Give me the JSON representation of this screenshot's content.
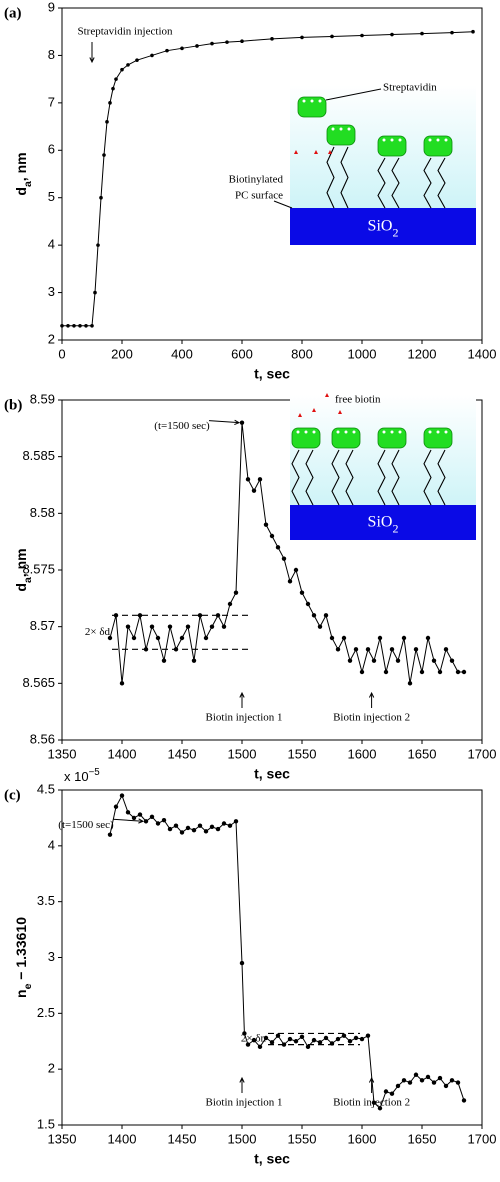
{
  "chart_data": [
    {
      "type": "line",
      "panel_label": "(a)",
      "ylabel_main": "d",
      "ylabel_sub": "a",
      "ylabel_rest": ", nm",
      "xlabel": "t, sec",
      "xlim": [
        0,
        1400
      ],
      "xticks": [
        0,
        200,
        400,
        600,
        800,
        1000,
        1200,
        1400
      ],
      "ylim": [
        2,
        9
      ],
      "yticks": [
        2,
        3,
        4,
        5,
        6,
        7,
        8,
        9
      ],
      "color": "#000000",
      "x": [
        0,
        20,
        40,
        60,
        80,
        100,
        110,
        120,
        130,
        140,
        150,
        160,
        170,
        180,
        200,
        220,
        250,
        300,
        350,
        400,
        450,
        500,
        550,
        600,
        700,
        800,
        900,
        1000,
        1100,
        1200,
        1300,
        1370
      ],
      "values": [
        2.3,
        2.3,
        2.3,
        2.3,
        2.3,
        2.3,
        3.0,
        4.0,
        5.0,
        5.9,
        6.6,
        7.0,
        7.3,
        7.5,
        7.7,
        7.8,
        7.9,
        8.0,
        8.1,
        8.15,
        8.2,
        8.25,
        8.28,
        8.3,
        8.35,
        8.38,
        8.4,
        8.42,
        8.44,
        8.46,
        8.48,
        8.5
      ],
      "injection_label": "Streptavidin injection",
      "inset": {
        "protein_label": "Streptavidin",
        "surface_label_1": "Biotinylated",
        "surface_label_2": "PC surface",
        "substrate": "SiO",
        "substrate_sub": "2"
      }
    },
    {
      "type": "line",
      "panel_label": "(b)",
      "ylabel_main": "d",
      "ylabel_sub": "a",
      "ylabel_rest": ", nm",
      "xlabel": "t, sec",
      "xlim": [
        1350,
        1700
      ],
      "xticks": [
        1350,
        1400,
        1450,
        1500,
        1550,
        1600,
        1650,
        1700
      ],
      "ylim": [
        8.56,
        8.59
      ],
      "yticks": [
        8.56,
        8.565,
        8.57,
        8.575,
        8.58,
        8.585,
        8.59
      ],
      "color": "#000000",
      "x": [
        1390,
        1395,
        1400,
        1405,
        1410,
        1415,
        1420,
        1425,
        1430,
        1435,
        1440,
        1445,
        1450,
        1455,
        1460,
        1465,
        1470,
        1475,
        1480,
        1485,
        1490,
        1495,
        1500,
        1505,
        1510,
        1515,
        1520,
        1525,
        1530,
        1535,
        1540,
        1545,
        1550,
        1555,
        1560,
        1565,
        1570,
        1575,
        1580,
        1585,
        1590,
        1595,
        1600,
        1605,
        1610,
        1615,
        1620,
        1625,
        1630,
        1635,
        1640,
        1645,
        1650,
        1655,
        1660,
        1665,
        1670,
        1675,
        1680,
        1685
      ],
      "values": [
        8.569,
        8.571,
        8.565,
        8.57,
        8.569,
        8.571,
        8.568,
        8.57,
        8.569,
        8.567,
        8.57,
        8.568,
        8.569,
        8.57,
        8.567,
        8.571,
        8.569,
        8.57,
        8.571,
        8.57,
        8.572,
        8.573,
        8.588,
        8.583,
        8.582,
        8.583,
        8.579,
        8.578,
        8.577,
        8.576,
        8.574,
        8.575,
        8.573,
        8.572,
        8.571,
        8.57,
        8.571,
        8.569,
        8.568,
        8.569,
        8.567,
        8.568,
        8.566,
        8.568,
        8.567,
        8.569,
        8.566,
        8.568,
        8.567,
        8.569,
        8.565,
        8.568,
        8.566,
        8.569,
        8.567,
        8.566,
        8.568,
        8.567,
        8.566,
        8.566
      ],
      "band": [
        8.568,
        8.571
      ],
      "band_label": "2× δd",
      "peak_label": "(t=1500 sec)",
      "injection_1": "Biotin injection 1",
      "injection_2": "Biotin injection 2",
      "inset": {
        "ligand_label": "free biotin",
        "substrate": "SiO",
        "substrate_sub": "2"
      }
    },
    {
      "type": "line",
      "panel_label": "(c)",
      "ylabel_main": "n",
      "ylabel_sub": "e",
      "ylabel_rest": " − 1.33610",
      "xlabel": "t, sec",
      "multiplier_base": "x 10",
      "multiplier_exp": "−5",
      "xlim": [
        1350,
        1700
      ],
      "xticks": [
        1350,
        1400,
        1450,
        1500,
        1550,
        1600,
        1650,
        1700
      ],
      "ylim": [
        1.5,
        4.5
      ],
      "yticks": [
        1.5,
        2,
        2.5,
        3,
        3.5,
        4,
        4.5
      ],
      "color": "#000000",
      "x": [
        1390,
        1395,
        1400,
        1405,
        1410,
        1415,
        1420,
        1425,
        1430,
        1435,
        1440,
        1445,
        1450,
        1455,
        1460,
        1465,
        1470,
        1475,
        1480,
        1485,
        1490,
        1495,
        1500,
        1502,
        1505,
        1510,
        1515,
        1520,
        1525,
        1530,
        1535,
        1540,
        1545,
        1550,
        1555,
        1560,
        1565,
        1570,
        1575,
        1580,
        1585,
        1590,
        1595,
        1600,
        1605,
        1610,
        1615,
        1620,
        1625,
        1630,
        1635,
        1640,
        1645,
        1650,
        1655,
        1660,
        1665,
        1670,
        1675,
        1680,
        1685
      ],
      "values": [
        4.1,
        4.35,
        4.45,
        4.3,
        4.25,
        4.28,
        4.22,
        4.26,
        4.2,
        4.23,
        4.15,
        4.18,
        4.12,
        4.16,
        4.14,
        4.18,
        4.13,
        4.17,
        4.15,
        4.2,
        4.18,
        4.22,
        2.95,
        2.32,
        2.22,
        2.26,
        2.2,
        2.28,
        2.24,
        2.3,
        2.22,
        2.27,
        2.25,
        2.29,
        2.2,
        2.26,
        2.24,
        2.28,
        2.23,
        2.27,
        2.3,
        2.25,
        2.28,
        2.27,
        2.3,
        1.7,
        1.65,
        1.8,
        1.78,
        1.85,
        1.9,
        1.88,
        1.95,
        1.9,
        1.93,
        1.88,
        1.92,
        1.85,
        1.9,
        1.88,
        1.72
      ],
      "band": [
        2.22,
        2.32
      ],
      "band_label": "2× δn",
      "peak_label": "(t=1500 sec)",
      "injection_1": "Biotin injection 1",
      "injection_2": "Biotin injection 2"
    }
  ]
}
